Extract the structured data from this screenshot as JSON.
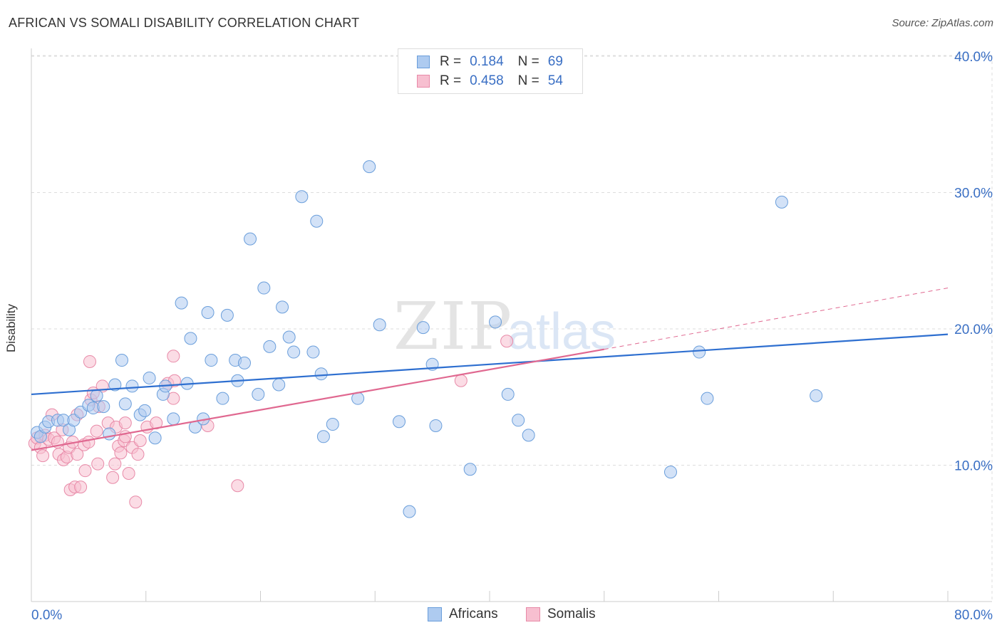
{
  "header": {
    "title": "AFRICAN VS SOMALI DISABILITY CORRELATION CHART",
    "source": "Source: ZipAtlas.com"
  },
  "legend": {
    "rows": [
      {
        "r_label": "R =",
        "r_value": "0.184",
        "n_label": "N =",
        "n_value": "69"
      },
      {
        "r_label": "R =",
        "r_value": "0.458",
        "n_label": "N =",
        "n_value": "54"
      }
    ]
  },
  "watermark": {
    "zip": "ZIP",
    "atlas": "atlas"
  },
  "colors": {
    "africans_fill": "#aecbf0",
    "africans_stroke": "#6a9edb",
    "africans_line": "#2e6fd0",
    "somalis_fill": "#f7bfd0",
    "somalis_stroke": "#e88aa8",
    "somalis_line": "#e06890",
    "axis_text": "#3a6fc4",
    "grid": "#dddddd"
  },
  "chart_data": {
    "type": "scatter",
    "title": "AFRICAN VS SOMALI DISABILITY CORRELATION CHART",
    "xlabel": "",
    "ylabel": "Disability",
    "xlim": [
      0,
      80
    ],
    "ylim": [
      0,
      42
    ],
    "x_tick_labels": [
      "0.0%",
      "80.0%"
    ],
    "y_ticks": [
      10,
      20,
      30,
      40
    ],
    "y_tick_labels": [
      "10.0%",
      "20.0%",
      "30.0%",
      "40.0%"
    ],
    "grid": true,
    "legend_position": "bottom-center",
    "series": [
      {
        "name": "Africans",
        "r": 0.184,
        "n": 69,
        "trend": {
          "x": [
            0,
            80
          ],
          "y": [
            15.2,
            19.6
          ]
        },
        "points": [
          [
            0.5,
            12.4
          ],
          [
            0.8,
            12.1
          ],
          [
            1.2,
            12.8
          ],
          [
            1.5,
            13.2
          ],
          [
            2.3,
            13.3
          ],
          [
            2.8,
            13.3
          ],
          [
            3.3,
            12.6
          ],
          [
            3.7,
            13.3
          ],
          [
            4.3,
            13.9
          ],
          [
            5.0,
            14.4
          ],
          [
            5.4,
            14.2
          ],
          [
            5.7,
            15.1
          ],
          [
            6.3,
            14.3
          ],
          [
            6.8,
            12.3
          ],
          [
            7.3,
            15.9
          ],
          [
            7.9,
            17.7
          ],
          [
            8.2,
            14.5
          ],
          [
            8.8,
            15.8
          ],
          [
            9.5,
            13.7
          ],
          [
            9.9,
            14.0
          ],
          [
            10.3,
            16.4
          ],
          [
            10.8,
            12.0
          ],
          [
            11.5,
            15.2
          ],
          [
            11.7,
            15.8
          ],
          [
            12.4,
            13.4
          ],
          [
            13.1,
            21.9
          ],
          [
            13.6,
            16.0
          ],
          [
            13.9,
            19.3
          ],
          [
            14.3,
            12.8
          ],
          [
            15.0,
            13.4
          ],
          [
            15.4,
            21.2
          ],
          [
            15.7,
            17.7
          ],
          [
            16.7,
            14.9
          ],
          [
            17.1,
            21.0
          ],
          [
            17.8,
            17.7
          ],
          [
            18.0,
            16.2
          ],
          [
            18.6,
            17.5
          ],
          [
            19.1,
            26.6
          ],
          [
            19.8,
            15.2
          ],
          [
            20.3,
            23.0
          ],
          [
            20.8,
            18.7
          ],
          [
            21.6,
            15.9
          ],
          [
            21.9,
            21.6
          ],
          [
            22.5,
            19.4
          ],
          [
            22.9,
            18.3
          ],
          [
            23.6,
            29.7
          ],
          [
            24.6,
            18.3
          ],
          [
            24.9,
            27.9
          ],
          [
            25.3,
            16.7
          ],
          [
            25.5,
            12.1
          ],
          [
            26.3,
            13.0
          ],
          [
            28.5,
            14.9
          ],
          [
            29.5,
            31.9
          ],
          [
            30.4,
            20.3
          ],
          [
            32.1,
            13.2
          ],
          [
            33.0,
            6.6
          ],
          [
            34.2,
            20.1
          ],
          [
            35.0,
            17.4
          ],
          [
            35.3,
            12.9
          ],
          [
            38.3,
            9.7
          ],
          [
            40.5,
            20.5
          ],
          [
            41.6,
            15.2
          ],
          [
            42.5,
            13.3
          ],
          [
            43.4,
            12.2
          ],
          [
            55.8,
            9.5
          ],
          [
            58.3,
            18.3
          ],
          [
            59.0,
            14.9
          ],
          [
            65.5,
            29.3
          ],
          [
            68.5,
            15.1
          ]
        ]
      },
      {
        "name": "Somalis",
        "r": 0.458,
        "n": 54,
        "trend": {
          "x": [
            0,
            50
          ],
          "y": [
            11.1,
            18.5
          ]
        },
        "trend_extension": {
          "x": [
            50,
            80
          ],
          "y": [
            18.5,
            23.0
          ]
        },
        "points": [
          [
            0.3,
            11.6
          ],
          [
            0.5,
            12.0
          ],
          [
            0.8,
            11.3
          ],
          [
            1.0,
            10.7
          ],
          [
            1.2,
            12.2
          ],
          [
            1.5,
            11.9
          ],
          [
            1.8,
            13.7
          ],
          [
            2.0,
            12.0
          ],
          [
            2.3,
            11.7
          ],
          [
            2.4,
            10.8
          ],
          [
            2.7,
            12.6
          ],
          [
            2.8,
            10.4
          ],
          [
            3.1,
            10.6
          ],
          [
            3.3,
            11.3
          ],
          [
            3.4,
            8.2
          ],
          [
            3.6,
            11.7
          ],
          [
            3.8,
            8.4
          ],
          [
            4.0,
            13.7
          ],
          [
            4.0,
            10.8
          ],
          [
            4.3,
            8.4
          ],
          [
            4.6,
            11.5
          ],
          [
            4.7,
            9.6
          ],
          [
            5.0,
            11.7
          ],
          [
            5.1,
            17.6
          ],
          [
            5.2,
            14.8
          ],
          [
            5.4,
            15.3
          ],
          [
            5.7,
            12.5
          ],
          [
            5.8,
            10.1
          ],
          [
            5.9,
            14.3
          ],
          [
            6.2,
            15.8
          ],
          [
            6.7,
            13.1
          ],
          [
            7.1,
            9.1
          ],
          [
            7.3,
            10.1
          ],
          [
            7.4,
            12.8
          ],
          [
            7.6,
            11.4
          ],
          [
            7.8,
            10.9
          ],
          [
            8.1,
            11.8
          ],
          [
            8.2,
            12.1
          ],
          [
            8.2,
            13.1
          ],
          [
            8.5,
            9.4
          ],
          [
            8.8,
            11.3
          ],
          [
            9.1,
            7.3
          ],
          [
            9.3,
            10.8
          ],
          [
            9.5,
            11.8
          ],
          [
            10.1,
            12.8
          ],
          [
            10.9,
            13.1
          ],
          [
            11.9,
            16.0
          ],
          [
            12.4,
            14.9
          ],
          [
            12.4,
            18.0
          ],
          [
            12.5,
            16.2
          ],
          [
            15.4,
            12.9
          ],
          [
            18.0,
            8.5
          ],
          [
            37.5,
            16.2
          ],
          [
            41.5,
            19.1
          ]
        ]
      }
    ]
  }
}
